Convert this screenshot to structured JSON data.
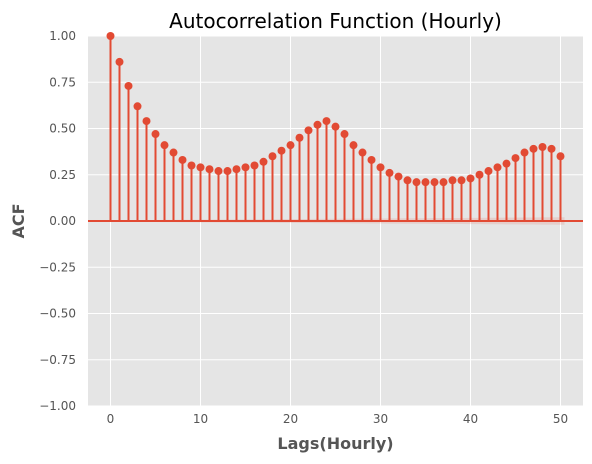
{
  "chart_data": {
    "type": "stem",
    "title": "Autocorrelation Function (Hourly)",
    "xlabel": "Lags(Hourly)",
    "ylabel": "ACF",
    "xlim": [
      -2.5,
      52.5
    ],
    "ylim": [
      -1.0,
      1.0
    ],
    "x_ticks": [
      0,
      10,
      20,
      30,
      40,
      50
    ],
    "x_tick_labels": [
      "0",
      "10",
      "20",
      "30",
      "40",
      "50"
    ],
    "y_ticks": [
      -1.0,
      -0.75,
      -0.5,
      -0.25,
      0.0,
      0.25,
      0.5,
      0.75,
      1.0
    ],
    "y_tick_labels": [
      "−1.00",
      "−0.75",
      "−0.50",
      "−0.25",
      "0.00",
      "0.25",
      "0.50",
      "0.75",
      "1.00"
    ],
    "grid": true,
    "lags": [
      0,
      1,
      2,
      3,
      4,
      5,
      6,
      7,
      8,
      9,
      10,
      11,
      12,
      13,
      14,
      15,
      16,
      17,
      18,
      19,
      20,
      21,
      22,
      23,
      24,
      25,
      26,
      27,
      28,
      29,
      30,
      31,
      32,
      33,
      34,
      35,
      36,
      37,
      38,
      39,
      40,
      41,
      42,
      43,
      44,
      45,
      46,
      47,
      48,
      49,
      50
    ],
    "values": [
      1.0,
      0.86,
      0.73,
      0.62,
      0.54,
      0.47,
      0.41,
      0.37,
      0.33,
      0.3,
      0.29,
      0.28,
      0.27,
      0.27,
      0.28,
      0.29,
      0.3,
      0.32,
      0.35,
      0.38,
      0.41,
      0.45,
      0.49,
      0.52,
      0.54,
      0.51,
      0.47,
      0.41,
      0.37,
      0.33,
      0.29,
      0.26,
      0.24,
      0.22,
      0.21,
      0.21,
      0.21,
      0.21,
      0.22,
      0.22,
      0.23,
      0.25,
      0.27,
      0.29,
      0.31,
      0.34,
      0.37,
      0.39,
      0.4,
      0.39,
      0.35
    ],
    "confidence_band": 0.02,
    "colors": {
      "stem": "#E24A33",
      "background": "#E5E5E5",
      "grid": "#FFFFFF",
      "band": "#E24A33"
    }
  }
}
